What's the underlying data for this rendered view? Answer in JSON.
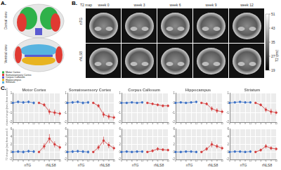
{
  "panel_a": {
    "label": "A.",
    "views": [
      "Dorsal view",
      "Ventral view"
    ],
    "legend": [
      {
        "name": "Motor Cortex",
        "color": "#2fb14a"
      },
      {
        "name": "Somatosensory Cortex",
        "color": "#e03a32"
      },
      {
        "name": "Corpus Callosum",
        "color": "#5a5ad0"
      },
      {
        "name": "Hippocampus",
        "color": "#e8b420"
      },
      {
        "name": "Striatum",
        "color": "#58b4e0"
      }
    ]
  },
  "panel_b": {
    "label": "B.",
    "title": "T2 map",
    "columns": [
      "week 0",
      "week 3",
      "week 6",
      "week 9",
      "week 12"
    ],
    "rows": [
      "nTG",
      "rNLS8"
    ],
    "colorbar": {
      "title": "T2 (ms)",
      "range": [
        19,
        51
      ],
      "ticks": [
        19,
        27,
        35,
        43,
        51
      ]
    }
  },
  "panel_c": {
    "label": "C."
  },
  "chart_data": [
    {
      "type": "line",
      "title": "Motor Cortex",
      "y_label": "Volume change (mm³) from week 0",
      "categories": [
        "0",
        "3",
        "6",
        "9",
        "12",
        "0",
        "3",
        "6",
        "9",
        "12"
      ],
      "series": [
        {
          "name": "nTG",
          "color": "#3a6fc4",
          "marker": "circle",
          "values": [
            0,
            0.1,
            0.05,
            0.1,
            0,
            null,
            null,
            null,
            null,
            null
          ],
          "error": [
            0,
            0.15,
            0.15,
            0.15,
            0.15,
            null,
            null,
            null,
            null,
            null
          ]
        },
        {
          "name": "rNLS8",
          "color": "#d43c3c",
          "marker": "circle",
          "values": [
            null,
            null,
            null,
            null,
            null,
            0,
            -0.2,
            -0.9,
            -1.0,
            -1.1
          ],
          "error": [
            null,
            null,
            null,
            null,
            null,
            0,
            0.2,
            0.3,
            0.3,
            0.3
          ]
        }
      ],
      "ylim": [
        -2,
        1
      ],
      "yticks": [
        -2,
        -1,
        0,
        1
      ],
      "grid": true
    },
    {
      "type": "line",
      "title": "Somatosensory Cortex",
      "categories": [
        "0",
        "3",
        "6",
        "9",
        "12",
        "0",
        "3",
        "6",
        "9",
        "12"
      ],
      "series": [
        {
          "name": "nTG",
          "color": "#3a6fc4",
          "marker": "circle",
          "values": [
            0,
            0.05,
            0.1,
            0,
            0.05,
            null,
            null,
            null,
            null,
            null
          ],
          "error": [
            0,
            0.15,
            0.15,
            0.15,
            0.15,
            null,
            null,
            null,
            null,
            null
          ]
        },
        {
          "name": "rNLS8",
          "color": "#d43c3c",
          "marker": "circle",
          "values": [
            null,
            null,
            null,
            null,
            null,
            0,
            -0.3,
            -1.2,
            -1.4,
            -1.5
          ],
          "error": [
            null,
            null,
            null,
            null,
            null,
            0,
            0.2,
            0.3,
            0.3,
            0.3
          ]
        }
      ],
      "ylim": [
        -2,
        1
      ],
      "yticks": [
        -2,
        -1,
        0,
        1
      ],
      "grid": true
    },
    {
      "type": "line",
      "title": "Corpus Callosum",
      "categories": [
        "0",
        "3",
        "6",
        "9",
        "12",
        "0",
        "3",
        "6",
        "9",
        "12"
      ],
      "series": [
        {
          "name": "nTG",
          "color": "#3a6fc4",
          "marker": "circle",
          "values": [
            0,
            0,
            0.05,
            0,
            0.05,
            null,
            null,
            null,
            null,
            null
          ],
          "error": [
            0,
            0.1,
            0.1,
            0.1,
            0.1,
            null,
            null,
            null,
            null,
            null
          ]
        },
        {
          "name": "rNLS8",
          "color": "#d43c3c",
          "marker": "circle",
          "values": [
            null,
            null,
            null,
            null,
            null,
            0,
            -0.1,
            -0.2,
            -0.3,
            -0.3
          ],
          "error": [
            null,
            null,
            null,
            null,
            null,
            0,
            0.1,
            0.15,
            0.15,
            0.15
          ]
        }
      ],
      "ylim": [
        -2,
        1
      ],
      "yticks": [
        -2,
        -1,
        0,
        1
      ],
      "grid": true
    },
    {
      "type": "line",
      "title": "Hippocampus",
      "categories": [
        "0",
        "3",
        "6",
        "9",
        "12",
        "0",
        "3",
        "6",
        "9",
        "12"
      ],
      "series": [
        {
          "name": "nTG",
          "color": "#3a6fc4",
          "marker": "circle",
          "values": [
            0,
            0.05,
            0,
            0.05,
            0.1,
            null,
            null,
            null,
            null,
            null
          ],
          "error": [
            0,
            0.1,
            0.1,
            0.1,
            0.1,
            null,
            null,
            null,
            null,
            null
          ]
        },
        {
          "name": "rNLS8",
          "color": "#d43c3c",
          "marker": "circle",
          "values": [
            null,
            null,
            null,
            null,
            null,
            0,
            -0.1,
            -0.6,
            -0.8,
            -0.9
          ],
          "error": [
            null,
            null,
            null,
            null,
            null,
            0,
            0.15,
            0.25,
            0.25,
            0.3
          ]
        }
      ],
      "ylim": [
        -2,
        1
      ],
      "yticks": [
        -2,
        -1,
        0,
        1
      ],
      "grid": true
    },
    {
      "type": "line",
      "title": "Striatum",
      "categories": [
        "0",
        "3",
        "6",
        "9",
        "12",
        "0",
        "3",
        "6",
        "9",
        "12"
      ],
      "series": [
        {
          "name": "nTG",
          "color": "#3a6fc4",
          "marker": "circle",
          "values": [
            0,
            0.05,
            0.1,
            0.05,
            0.05,
            null,
            null,
            null,
            null,
            null
          ],
          "error": [
            0,
            0.1,
            0.1,
            0.1,
            0.1,
            null,
            null,
            null,
            null,
            null
          ]
        },
        {
          "name": "rNLS8",
          "color": "#d43c3c",
          "marker": "circle",
          "values": [
            null,
            null,
            null,
            null,
            null,
            0,
            -0.2,
            -0.7,
            -0.9,
            -1.0
          ],
          "error": [
            null,
            null,
            null,
            null,
            null,
            0,
            0.15,
            0.25,
            0.3,
            0.3
          ]
        }
      ],
      "ylim": [
        -2,
        1
      ],
      "yticks": [
        -2,
        -1,
        0,
        1
      ],
      "grid": true
    },
    {
      "type": "line",
      "y_label": "T2 change (ms) from week 0",
      "group_labels": [
        "nTG",
        "rNLS8"
      ],
      "categories": [
        "0",
        "3",
        "6",
        "9",
        "12",
        "0",
        "3",
        "6",
        "9",
        "12"
      ],
      "series": [
        {
          "name": "nTG",
          "color": "#3a6fc4",
          "marker": "circle",
          "values": [
            0,
            0.1,
            0,
            0.2,
            0.1,
            null,
            null,
            null,
            null,
            null
          ],
          "error": [
            0,
            0.4,
            0.4,
            0.4,
            0.4,
            null,
            null,
            null,
            null,
            null
          ]
        },
        {
          "name": "rNLS8",
          "color": "#d43c3c",
          "marker": "circle",
          "values": [
            null,
            null,
            null,
            null,
            null,
            0,
            1.5,
            3.5,
            2.0,
            1.2
          ],
          "error": [
            null,
            null,
            null,
            null,
            null,
            0,
            0.8,
            1.2,
            0.8,
            0.8
          ]
        }
      ],
      "ylim": [
        -2,
        6
      ],
      "yticks": [
        -2,
        0,
        2,
        4,
        6
      ],
      "grid": true
    },
    {
      "type": "line",
      "group_labels": [
        "nTG",
        "rNLS8"
      ],
      "categories": [
        "0",
        "3",
        "6",
        "9",
        "12",
        "0",
        "3",
        "6",
        "9",
        "12"
      ],
      "series": [
        {
          "name": "nTG",
          "color": "#3a6fc4",
          "marker": "circle",
          "values": [
            0,
            0.1,
            0.2,
            0.1,
            0,
            null,
            null,
            null,
            null,
            null
          ],
          "error": [
            0,
            0.4,
            0.4,
            0.4,
            0.4,
            null,
            null,
            null,
            null,
            null
          ]
        },
        {
          "name": "rNLS8",
          "color": "#d43c3c",
          "marker": "circle",
          "values": [
            null,
            null,
            null,
            null,
            null,
            0,
            1.2,
            3.0,
            1.8,
            1.0
          ],
          "error": [
            null,
            null,
            null,
            null,
            null,
            0,
            0.7,
            1.0,
            0.8,
            0.7
          ]
        }
      ],
      "ylim": [
        -2,
        6
      ],
      "yticks": [
        -2,
        0,
        2,
        4,
        6
      ],
      "grid": true
    },
    {
      "type": "line",
      "group_labels": [
        "nTG",
        "rNLS8"
      ],
      "categories": [
        "0",
        "3",
        "6",
        "9",
        "12",
        "0",
        "3",
        "6",
        "9",
        "12"
      ],
      "series": [
        {
          "name": "nTG",
          "color": "#3a6fc4",
          "marker": "circle",
          "values": [
            0,
            0.1,
            0,
            0.1,
            0.1,
            null,
            null,
            null,
            null,
            null
          ],
          "error": [
            0,
            0.3,
            0.3,
            0.3,
            0.3,
            null,
            null,
            null,
            null,
            null
          ]
        },
        {
          "name": "rNLS8",
          "color": "#d43c3c",
          "marker": "circle",
          "values": [
            null,
            null,
            null,
            null,
            null,
            0,
            0.3,
            0.8,
            0.6,
            0.5
          ],
          "error": [
            null,
            null,
            null,
            null,
            null,
            0,
            0.4,
            0.5,
            0.4,
            0.4
          ]
        }
      ],
      "ylim": [
        -2,
        6
      ],
      "yticks": [
        -2,
        0,
        2,
        4,
        6
      ],
      "grid": true
    },
    {
      "type": "line",
      "group_labels": [
        "nTG",
        "rNLS8"
      ],
      "categories": [
        "0",
        "3",
        "6",
        "9",
        "12",
        "0",
        "3",
        "6",
        "9",
        "12"
      ],
      "series": [
        {
          "name": "nTG",
          "color": "#3a6fc4",
          "marker": "circle",
          "values": [
            0,
            0,
            0.1,
            0.1,
            0,
            null,
            null,
            null,
            null,
            null
          ],
          "error": [
            0,
            0.3,
            0.3,
            0.3,
            0.3,
            null,
            null,
            null,
            null,
            null
          ]
        },
        {
          "name": "rNLS8",
          "color": "#d43c3c",
          "marker": "circle",
          "values": [
            null,
            null,
            null,
            null,
            null,
            0,
            0.8,
            2.0,
            1.5,
            1.0
          ],
          "error": [
            null,
            null,
            null,
            null,
            null,
            0,
            0.5,
            0.8,
            0.6,
            0.6
          ]
        }
      ],
      "ylim": [
        -2,
        6
      ],
      "yticks": [
        -2,
        0,
        2,
        4,
        6
      ],
      "grid": true
    },
    {
      "type": "line",
      "group_labels": [
        "nTG",
        "rNLS8"
      ],
      "categories": [
        "0",
        "3",
        "6",
        "9",
        "12",
        "0",
        "3",
        "6",
        "9",
        "12"
      ],
      "series": [
        {
          "name": "nTG",
          "color": "#3a6fc4",
          "marker": "circle",
          "values": [
            0,
            0.1,
            0.1,
            0,
            0.1,
            null,
            null,
            null,
            null,
            null
          ],
          "error": [
            0,
            0.3,
            0.3,
            0.3,
            0.3,
            null,
            null,
            null,
            null,
            null
          ]
        },
        {
          "name": "rNLS8",
          "color": "#d43c3c",
          "marker": "circle",
          "values": [
            null,
            null,
            null,
            null,
            null,
            0,
            0.5,
            1.5,
            1.0,
            0.8
          ],
          "error": [
            null,
            null,
            null,
            null,
            null,
            0,
            0.4,
            0.6,
            0.5,
            0.5
          ]
        }
      ],
      "ylim": [
        -2,
        6
      ],
      "yticks": [
        -2,
        0,
        2,
        4,
        6
      ],
      "grid": true
    }
  ]
}
